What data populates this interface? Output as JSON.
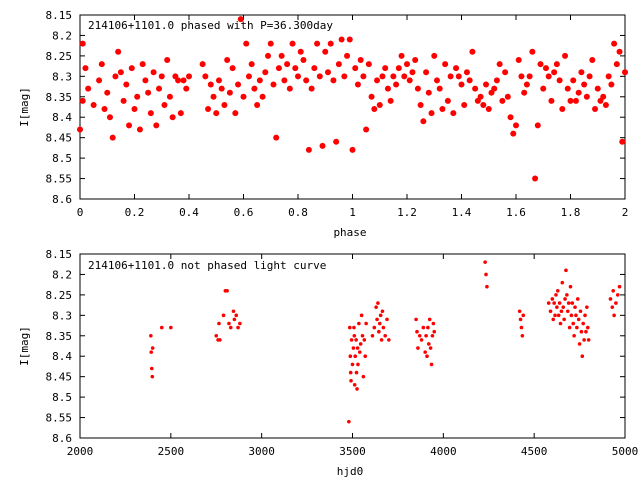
{
  "chart_data": [
    {
      "type": "scatter",
      "title": "214106+1101.0 phased with P=36.300day",
      "xlabel": "phase",
      "ylabel": "I[mag]",
      "xlim": [
        0,
        2
      ],
      "ylim": [
        8.6,
        8.15
      ],
      "y_inverted": true,
      "x_ticks": [
        "0",
        "0.2",
        "0.4",
        "0.6",
        "0.8",
        "1",
        "1.2",
        "1.4",
        "1.6",
        "1.8",
        "2"
      ],
      "y_ticks": [
        "8.15",
        "8.2",
        "8.25",
        "8.3",
        "8.35",
        "8.4",
        "8.45",
        "8.5",
        "8.55",
        "8.6"
      ],
      "marker_color": "#ff0000",
      "points": [
        [
          0.0,
          8.43
        ],
        [
          0.01,
          8.36
        ],
        [
          0.01,
          8.22
        ],
        [
          0.02,
          8.28
        ],
        [
          0.03,
          8.33
        ],
        [
          0.05,
          8.37
        ],
        [
          0.07,
          8.31
        ],
        [
          0.08,
          8.27
        ],
        [
          0.09,
          8.38
        ],
        [
          0.1,
          8.34
        ],
        [
          0.11,
          8.4
        ],
        [
          0.12,
          8.45
        ],
        [
          0.13,
          8.3
        ],
        [
          0.14,
          8.24
        ],
        [
          0.15,
          8.29
        ],
        [
          0.16,
          8.36
        ],
        [
          0.17,
          8.32
        ],
        [
          0.18,
          8.42
        ],
        [
          0.19,
          8.28
        ],
        [
          0.2,
          8.38
        ],
        [
          0.21,
          8.35
        ],
        [
          0.22,
          8.43
        ],
        [
          0.23,
          8.27
        ],
        [
          0.24,
          8.31
        ],
        [
          0.25,
          8.34
        ],
        [
          0.26,
          8.39
        ],
        [
          0.27,
          8.29
        ],
        [
          0.28,
          8.42
        ],
        [
          0.29,
          8.33
        ],
        [
          0.3,
          8.3
        ],
        [
          0.31,
          8.37
        ],
        [
          0.32,
          8.26
        ],
        [
          0.33,
          8.35
        ],
        [
          0.34,
          8.4
        ],
        [
          0.35,
          8.3
        ],
        [
          0.36,
          8.31
        ],
        [
          0.37,
          8.39
        ],
        [
          0.38,
          8.31
        ],
        [
          0.39,
          8.33
        ],
        [
          0.4,
          8.3
        ],
        [
          0.45,
          8.27
        ],
        [
          0.46,
          8.3
        ],
        [
          0.47,
          8.38
        ],
        [
          0.48,
          8.32
        ],
        [
          0.49,
          8.35
        ],
        [
          0.5,
          8.39
        ],
        [
          0.51,
          8.31
        ],
        [
          0.52,
          8.33
        ],
        [
          0.53,
          8.37
        ],
        [
          0.54,
          8.26
        ],
        [
          0.55,
          8.34
        ],
        [
          0.56,
          8.28
        ],
        [
          0.57,
          8.39
        ],
        [
          0.58,
          8.32
        ],
        [
          0.59,
          8.16
        ],
        [
          0.6,
          8.35
        ],
        [
          0.61,
          8.22
        ],
        [
          0.62,
          8.3
        ],
        [
          0.63,
          8.27
        ],
        [
          0.64,
          8.33
        ],
        [
          0.65,
          8.37
        ],
        [
          0.66,
          8.31
        ],
        [
          0.67,
          8.35
        ],
        [
          0.68,
          8.29
        ],
        [
          0.69,
          8.25
        ],
        [
          0.7,
          8.22
        ],
        [
          0.71,
          8.32
        ],
        [
          0.72,
          8.45
        ],
        [
          0.73,
          8.28
        ],
        [
          0.74,
          8.25
        ],
        [
          0.75,
          8.31
        ],
        [
          0.76,
          8.27
        ],
        [
          0.77,
          8.33
        ],
        [
          0.78,
          8.22
        ],
        [
          0.79,
          8.28
        ],
        [
          0.8,
          8.3
        ],
        [
          0.81,
          8.24
        ],
        [
          0.82,
          8.26
        ],
        [
          0.83,
          8.31
        ],
        [
          0.84,
          8.48
        ],
        [
          0.85,
          8.33
        ],
        [
          0.86,
          8.28
        ],
        [
          0.87,
          8.22
        ],
        [
          0.88,
          8.3
        ],
        [
          0.89,
          8.47
        ],
        [
          0.9,
          8.24
        ],
        [
          0.91,
          8.29
        ],
        [
          0.92,
          8.22
        ],
        [
          0.93,
          8.31
        ],
        [
          0.94,
          8.46
        ],
        [
          0.95,
          8.27
        ],
        [
          0.96,
          8.21
        ],
        [
          0.97,
          8.3
        ],
        [
          0.98,
          8.25
        ],
        [
          0.99,
          8.21
        ],
        [
          1.0,
          8.48
        ],
        [
          1.01,
          8.28
        ],
        [
          1.02,
          8.32
        ],
        [
          1.03,
          8.26
        ],
        [
          1.04,
          8.3
        ],
        [
          1.05,
          8.43
        ],
        [
          1.06,
          8.27
        ],
        [
          1.07,
          8.35
        ],
        [
          1.08,
          8.38
        ],
        [
          1.09,
          8.31
        ],
        [
          1.1,
          8.37
        ],
        [
          1.11,
          8.3
        ],
        [
          1.12,
          8.28
        ],
        [
          1.13,
          8.33
        ],
        [
          1.14,
          8.36
        ],
        [
          1.15,
          8.3
        ],
        [
          1.16,
          8.32
        ],
        [
          1.17,
          8.28
        ],
        [
          1.18,
          8.25
        ],
        [
          1.19,
          8.3
        ],
        [
          1.2,
          8.27
        ],
        [
          1.21,
          8.31
        ],
        [
          1.22,
          8.29
        ],
        [
          1.23,
          8.26
        ],
        [
          1.24,
          8.33
        ],
        [
          1.25,
          8.37
        ],
        [
          1.26,
          8.41
        ],
        [
          1.27,
          8.29
        ],
        [
          1.28,
          8.34
        ],
        [
          1.29,
          8.39
        ],
        [
          1.3,
          8.25
        ],
        [
          1.31,
          8.31
        ],
        [
          1.32,
          8.33
        ],
        [
          1.33,
          8.38
        ],
        [
          1.34,
          8.27
        ],
        [
          1.35,
          8.36
        ],
        [
          1.36,
          8.3
        ],
        [
          1.37,
          8.39
        ],
        [
          1.38,
          8.28
        ],
        [
          1.39,
          8.3
        ],
        [
          1.4,
          8.32
        ],
        [
          1.41,
          8.37
        ],
        [
          1.42,
          8.29
        ],
        [
          1.43,
          8.31
        ],
        [
          1.44,
          8.24
        ],
        [
          1.45,
          8.33
        ],
        [
          1.46,
          8.36
        ],
        [
          1.47,
          8.35
        ],
        [
          1.48,
          8.37
        ],
        [
          1.49,
          8.32
        ],
        [
          1.5,
          8.38
        ],
        [
          1.51,
          8.34
        ],
        [
          1.52,
          8.33
        ],
        [
          1.53,
          8.31
        ],
        [
          1.54,
          8.27
        ],
        [
          1.55,
          8.36
        ],
        [
          1.56,
          8.29
        ],
        [
          1.57,
          8.35
        ],
        [
          1.58,
          8.4
        ],
        [
          1.59,
          8.44
        ],
        [
          1.6,
          8.42
        ],
        [
          1.61,
          8.26
        ],
        [
          1.62,
          8.3
        ],
        [
          1.63,
          8.34
        ],
        [
          1.64,
          8.32
        ],
        [
          1.65,
          8.3
        ],
        [
          1.66,
          8.24
        ],
        [
          1.67,
          8.55
        ],
        [
          1.68,
          8.42
        ],
        [
          1.69,
          8.27
        ],
        [
          1.7,
          8.33
        ],
        [
          1.71,
          8.28
        ],
        [
          1.72,
          8.3
        ],
        [
          1.73,
          8.36
        ],
        [
          1.74,
          8.29
        ],
        [
          1.75,
          8.27
        ],
        [
          1.76,
          8.31
        ],
        [
          1.77,
          8.38
        ],
        [
          1.78,
          8.25
        ],
        [
          1.79,
          8.33
        ],
        [
          1.8,
          8.36
        ],
        [
          1.81,
          8.31
        ],
        [
          1.82,
          8.36
        ],
        [
          1.83,
          8.34
        ],
        [
          1.84,
          8.29
        ],
        [
          1.85,
          8.32
        ],
        [
          1.86,
          8.35
        ],
        [
          1.87,
          8.3
        ],
        [
          1.88,
          8.26
        ],
        [
          1.89,
          8.38
        ],
        [
          1.9,
          8.33
        ],
        [
          1.91,
          8.36
        ],
        [
          1.92,
          8.35
        ],
        [
          1.93,
          8.37
        ],
        [
          1.94,
          8.3
        ],
        [
          1.95,
          8.32
        ],
        [
          1.96,
          8.22
        ],
        [
          1.97,
          8.27
        ],
        [
          1.98,
          8.24
        ],
        [
          1.99,
          8.46
        ],
        [
          2.0,
          8.29
        ]
      ]
    },
    {
      "type": "scatter",
      "title": "214106+1101.0 not phased light curve",
      "xlabel": "hjd0",
      "ylabel": "I[mag]",
      "xlim": [
        2000,
        5000
      ],
      "ylim": [
        8.6,
        8.15
      ],
      "y_inverted": true,
      "x_ticks": [
        "2000",
        "2500",
        "3000",
        "3500",
        "4000",
        "4500",
        "5000"
      ],
      "y_ticks": [
        "8.15",
        "8.2",
        "8.25",
        "8.3",
        "8.35",
        "8.4",
        "8.45",
        "8.5",
        "8.55",
        "8.6"
      ],
      "marker_color": "#ff0000",
      "points": [
        [
          2390,
          8.35
        ],
        [
          2392,
          8.39
        ],
        [
          2395,
          8.43
        ],
        [
          2398,
          8.45
        ],
        [
          2400,
          8.38
        ],
        [
          2450,
          8.33
        ],
        [
          2500,
          8.33
        ],
        [
          2750,
          8.35
        ],
        [
          2760,
          8.36
        ],
        [
          2765,
          8.32
        ],
        [
          2770,
          8.36
        ],
        [
          2790,
          8.3
        ],
        [
          2800,
          8.24
        ],
        [
          2810,
          8.24
        ],
        [
          2820,
          8.32
        ],
        [
          2830,
          8.33
        ],
        [
          2845,
          8.29
        ],
        [
          2850,
          8.31
        ],
        [
          2860,
          8.3
        ],
        [
          2870,
          8.33
        ],
        [
          2880,
          8.32
        ],
        [
          3480,
          8.56
        ],
        [
          3485,
          8.33
        ],
        [
          3488,
          8.4
        ],
        [
          3490,
          8.44
        ],
        [
          3492,
          8.46
        ],
        [
          3495,
          8.36
        ],
        [
          3500,
          8.42
        ],
        [
          3505,
          8.38
        ],
        [
          3508,
          8.33
        ],
        [
          3510,
          8.35
        ],
        [
          3512,
          8.47
        ],
        [
          3515,
          8.4
        ],
        [
          3520,
          8.36
        ],
        [
          3522,
          8.44
        ],
        [
          3525,
          8.48
        ],
        [
          3528,
          8.38
        ],
        [
          3530,
          8.42
        ],
        [
          3535,
          8.32
        ],
        [
          3540,
          8.39
        ],
        [
          3545,
          8.37
        ],
        [
          3550,
          8.3
        ],
        [
          3555,
          8.35
        ],
        [
          3560,
          8.45
        ],
        [
          3565,
          8.36
        ],
        [
          3570,
          8.4
        ],
        [
          3575,
          8.32
        ],
        [
          3610,
          8.35
        ],
        [
          3620,
          8.33
        ],
        [
          3630,
          8.28
        ],
        [
          3635,
          8.31
        ],
        [
          3640,
          8.27
        ],
        [
          3645,
          8.34
        ],
        [
          3650,
          8.32
        ],
        [
          3655,
          8.3
        ],
        [
          3660,
          8.36
        ],
        [
          3665,
          8.29
        ],
        [
          3670,
          8.33
        ],
        [
          3680,
          8.35
        ],
        [
          3690,
          8.31
        ],
        [
          3700,
          8.36
        ],
        [
          3850,
          8.31
        ],
        [
          3855,
          8.34
        ],
        [
          3860,
          8.38
        ],
        [
          3870,
          8.35
        ],
        [
          3880,
          8.36
        ],
        [
          3890,
          8.33
        ],
        [
          3900,
          8.39
        ],
        [
          3905,
          8.35
        ],
        [
          3910,
          8.4
        ],
        [
          3915,
          8.33
        ],
        [
          3920,
          8.37
        ],
        [
          3925,
          8.31
        ],
        [
          3930,
          8.38
        ],
        [
          3935,
          8.42
        ],
        [
          3940,
          8.35
        ],
        [
          3945,
          8.32
        ],
        [
          3950,
          8.34
        ],
        [
          4230,
          8.17
        ],
        [
          4235,
          8.2
        ],
        [
          4240,
          8.23
        ],
        [
          4420,
          8.29
        ],
        [
          4425,
          8.31
        ],
        [
          4430,
          8.33
        ],
        [
          4435,
          8.35
        ],
        [
          4440,
          8.3
        ],
        [
          4580,
          8.27
        ],
        [
          4590,
          8.29
        ],
        [
          4600,
          8.26
        ],
        [
          4605,
          8.31
        ],
        [
          4610,
          8.27
        ],
        [
          4615,
          8.3
        ],
        [
          4620,
          8.25
        ],
        [
          4625,
          8.28
        ],
        [
          4630,
          8.24
        ],
        [
          4635,
          8.3
        ],
        [
          4640,
          8.27
        ],
        [
          4645,
          8.32
        ],
        [
          4650,
          8.29
        ],
        [
          4655,
          8.22
        ],
        [
          4660,
          8.28
        ],
        [
          4665,
          8.31
        ],
        [
          4670,
          8.26
        ],
        [
          4675,
          8.19
        ],
        [
          4680,
          8.25
        ],
        [
          4685,
          8.29
        ],
        [
          4690,
          8.27
        ],
        [
          4695,
          8.33
        ],
        [
          4700,
          8.23
        ],
        [
          4705,
          8.3
        ],
        [
          4710,
          8.27
        ],
        [
          4715,
          8.32
        ],
        [
          4720,
          8.35
        ],
        [
          4725,
          8.28
        ],
        [
          4730,
          8.3
        ],
        [
          4735,
          8.33
        ],
        [
          4740,
          8.26
        ],
        [
          4745,
          8.31
        ],
        [
          4750,
          8.37
        ],
        [
          4755,
          8.29
        ],
        [
          4760,
          8.34
        ],
        [
          4765,
          8.4
        ],
        [
          4770,
          8.32
        ],
        [
          4775,
          8.36
        ],
        [
          4780,
          8.3
        ],
        [
          4785,
          8.34
        ],
        [
          4790,
          8.28
        ],
        [
          4795,
          8.33
        ],
        [
          4800,
          8.36
        ],
        [
          4920,
          8.26
        ],
        [
          4930,
          8.28
        ],
        [
          4935,
          8.24
        ],
        [
          4940,
          8.3
        ],
        [
          4950,
          8.27
        ],
        [
          4960,
          8.25
        ],
        [
          4970,
          8.23
        ]
      ]
    }
  ]
}
